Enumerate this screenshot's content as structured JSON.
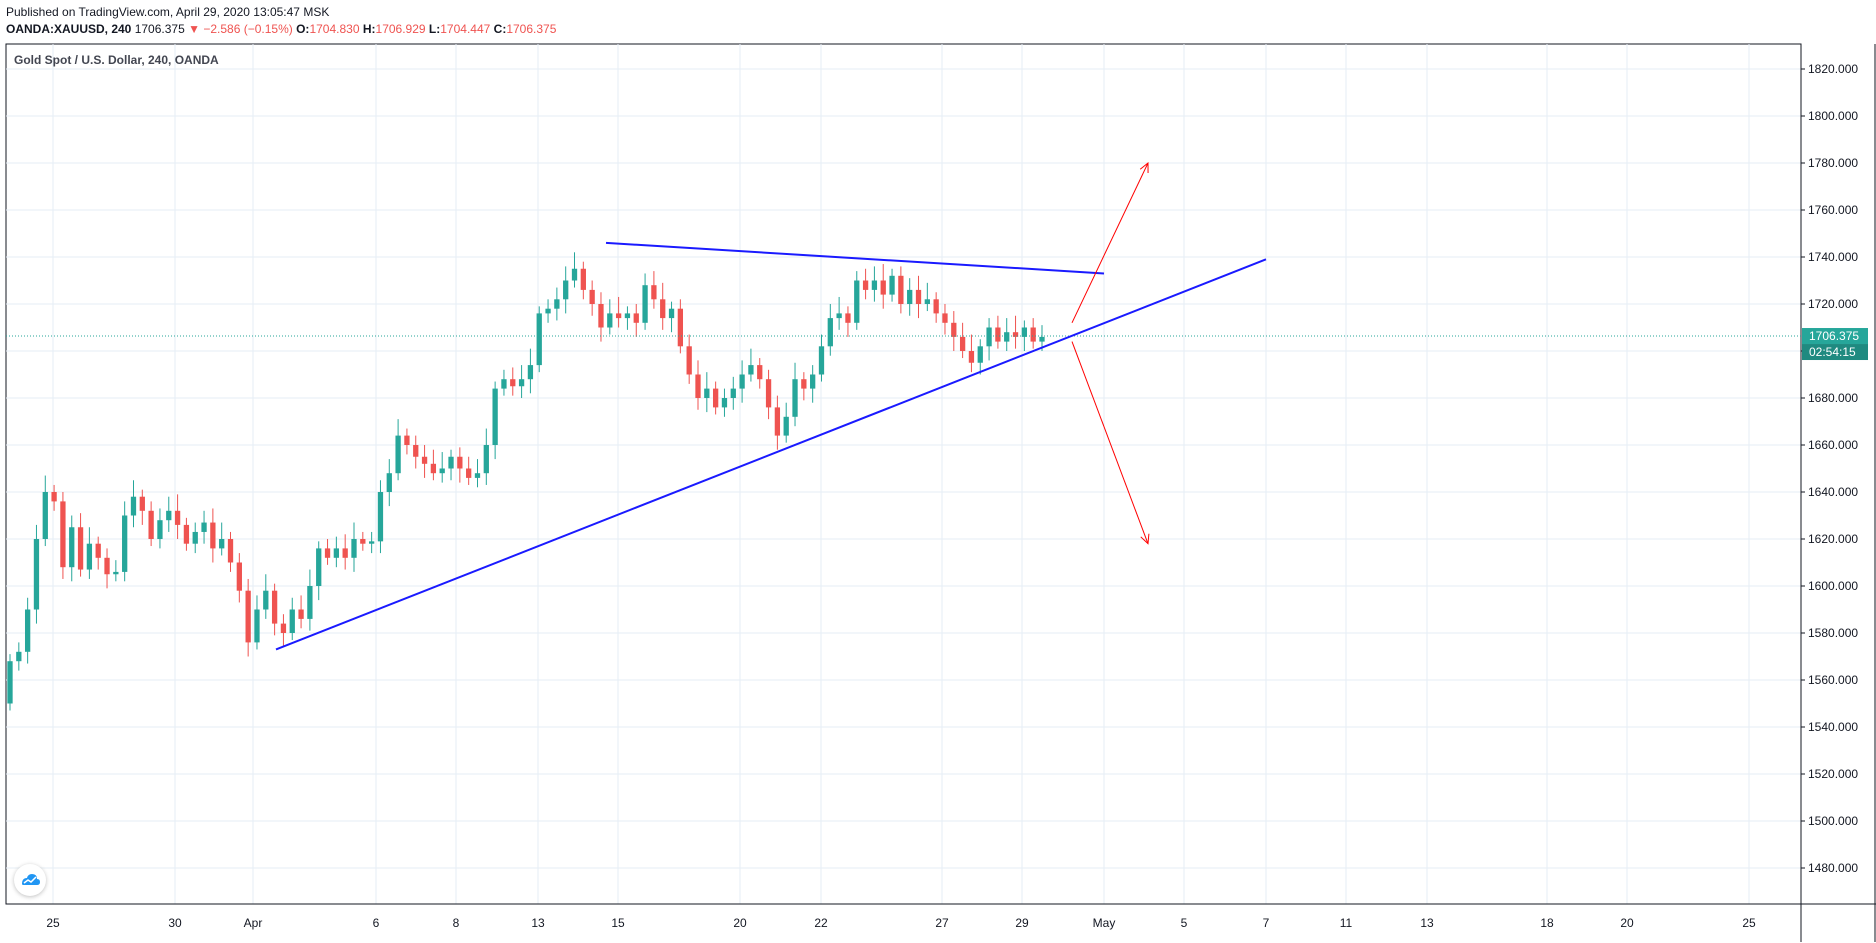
{
  "header": {
    "published": "Published on TradingView.com, April 29, 2020 13:05:47 MSK",
    "symbol": "OANDA:XAUUSD, 240",
    "last": "1706.375",
    "change": "−2.586 (−0.15%)",
    "o_label": "O:",
    "o_value": "1704.830",
    "h_label": "H:",
    "h_value": "1706.929",
    "l_label": "L:",
    "l_value": "1704.447",
    "c_label": "C:",
    "c_value": "1706.375"
  },
  "colors": {
    "up": "#26a69a",
    "down": "#ef5350",
    "trendline": "#1a1aff",
    "arrow": "#ff0000",
    "grid": "#e6eef5",
    "price_tag": "#26a69a"
  },
  "chart_data": {
    "type": "candlestick",
    "title": "Gold Spot / U.S. Dollar, 240, OANDA",
    "ylim": [
      1470,
      1830
    ],
    "y_ticks": [
      "1820.000",
      "1800.000",
      "1780.000",
      "1760.000",
      "1740.000",
      "1720.000",
      "1700.000",
      "1680.000",
      "1660.000",
      "1640.000",
      "1620.000",
      "1600.000",
      "1580.000",
      "1560.000",
      "1540.000",
      "1520.000",
      "1500.000",
      "1480.000"
    ],
    "x_ticks": [
      "25",
      "30",
      "Apr",
      "6",
      "8",
      "13",
      "15",
      "20",
      "22",
      "27",
      "29",
      "May",
      "5",
      "7",
      "11",
      "13",
      "18",
      "20",
      "25"
    ],
    "last_price": "1706.375",
    "countdown": "02:54:15",
    "candles": [
      {
        "o": 1550,
        "c": 1568
      },
      {
        "o": 1568,
        "c": 1572
      },
      {
        "o": 1572,
        "c": 1590
      },
      {
        "o": 1590,
        "c": 1620
      },
      {
        "o": 1620,
        "c": 1640
      },
      {
        "o": 1640,
        "c": 1636
      },
      {
        "o": 1636,
        "c": 1608
      },
      {
        "o": 1608,
        "c": 1625
      },
      {
        "o": 1625,
        "c": 1607
      },
      {
        "o": 1607,
        "c": 1618
      },
      {
        "o": 1618,
        "c": 1612
      },
      {
        "o": 1612,
        "c": 1605
      },
      {
        "o": 1605,
        "c": 1606
      },
      {
        "o": 1606,
        "c": 1630
      },
      {
        "o": 1630,
        "c": 1638
      },
      {
        "o": 1638,
        "c": 1632
      },
      {
        "o": 1632,
        "c": 1620
      },
      {
        "o": 1620,
        "c": 1628
      },
      {
        "o": 1628,
        "c": 1632
      },
      {
        "o": 1632,
        "c": 1626
      },
      {
        "o": 1626,
        "c": 1618
      },
      {
        "o": 1618,
        "c": 1623
      },
      {
        "o": 1623,
        "c": 1627
      },
      {
        "o": 1627,
        "c": 1616
      },
      {
        "o": 1616,
        "c": 1620
      },
      {
        "o": 1620,
        "c": 1610
      },
      {
        "o": 1610,
        "c": 1598
      },
      {
        "o": 1598,
        "c": 1576
      },
      {
        "o": 1576,
        "c": 1590
      },
      {
        "o": 1590,
        "c": 1598
      },
      {
        "o": 1598,
        "c": 1584
      },
      {
        "o": 1584,
        "c": 1580
      },
      {
        "o": 1580,
        "c": 1590
      },
      {
        "o": 1590,
        "c": 1586
      },
      {
        "o": 1586,
        "c": 1600
      },
      {
        "o": 1600,
        "c": 1616
      },
      {
        "o": 1616,
        "c": 1612
      },
      {
        "o": 1612,
        "c": 1616
      },
      {
        "o": 1616,
        "c": 1612
      },
      {
        "o": 1612,
        "c": 1620
      },
      {
        "o": 1620,
        "c": 1618
      },
      {
        "o": 1618,
        "c": 1619
      },
      {
        "o": 1619,
        "c": 1640
      },
      {
        "o": 1640,
        "c": 1648
      },
      {
        "o": 1648,
        "c": 1664
      },
      {
        "o": 1664,
        "c": 1660
      },
      {
        "o": 1660,
        "c": 1655
      },
      {
        "o": 1655,
        "c": 1652
      },
      {
        "o": 1652,
        "c": 1648
      },
      {
        "o": 1648,
        "c": 1650
      },
      {
        "o": 1650,
        "c": 1655
      },
      {
        "o": 1655,
        "c": 1650
      },
      {
        "o": 1650,
        "c": 1646
      },
      {
        "o": 1646,
        "c": 1648
      },
      {
        "o": 1648,
        "c": 1660
      },
      {
        "o": 1660,
        "c": 1684
      },
      {
        "o": 1684,
        "c": 1688
      },
      {
        "o": 1688,
        "c": 1685
      },
      {
        "o": 1685,
        "c": 1688
      },
      {
        "o": 1688,
        "c": 1694
      },
      {
        "o": 1694,
        "c": 1716
      },
      {
        "o": 1716,
        "c": 1718
      },
      {
        "o": 1718,
        "c": 1722
      },
      {
        "o": 1722,
        "c": 1730
      },
      {
        "o": 1730,
        "c": 1735
      },
      {
        "o": 1735,
        "c": 1726
      },
      {
        "o": 1726,
        "c": 1720
      },
      {
        "o": 1720,
        "c": 1710
      },
      {
        "o": 1710,
        "c": 1716
      },
      {
        "o": 1716,
        "c": 1714
      },
      {
        "o": 1714,
        "c": 1716
      },
      {
        "o": 1716,
        "c": 1712
      },
      {
        "o": 1712,
        "c": 1728
      },
      {
        "o": 1728,
        "c": 1722
      },
      {
        "o": 1722,
        "c": 1714
      },
      {
        "o": 1714,
        "c": 1718
      },
      {
        "o": 1718,
        "c": 1702
      },
      {
        "o": 1702,
        "c": 1690
      },
      {
        "o": 1690,
        "c": 1680
      },
      {
        "o": 1680,
        "c": 1684
      },
      {
        "o": 1684,
        "c": 1676
      },
      {
        "o": 1676,
        "c": 1680
      },
      {
        "o": 1680,
        "c": 1684
      },
      {
        "o": 1684,
        "c": 1690
      },
      {
        "o": 1690,
        "c": 1694
      },
      {
        "o": 1694,
        "c": 1688
      },
      {
        "o": 1688,
        "c": 1676
      },
      {
        "o": 1676,
        "c": 1664
      },
      {
        "o": 1664,
        "c": 1672
      },
      {
        "o": 1672,
        "c": 1688
      },
      {
        "o": 1688,
        "c": 1684
      },
      {
        "o": 1684,
        "c": 1690
      },
      {
        "o": 1690,
        "c": 1702
      },
      {
        "o": 1702,
        "c": 1714
      },
      {
        "o": 1714,
        "c": 1716
      },
      {
        "o": 1716,
        "c": 1712
      },
      {
        "o": 1712,
        "c": 1730
      },
      {
        "o": 1730,
        "c": 1726
      },
      {
        "o": 1726,
        "c": 1730
      },
      {
        "o": 1730,
        "c": 1724
      },
      {
        "o": 1724,
        "c": 1732
      },
      {
        "o": 1732,
        "c": 1720
      },
      {
        "o": 1720,
        "c": 1726
      },
      {
        "o": 1726,
        "c": 1720
      },
      {
        "o": 1720,
        "c": 1722
      },
      {
        "o": 1722,
        "c": 1716
      },
      {
        "o": 1716,
        "c": 1712
      },
      {
        "o": 1712,
        "c": 1706
      },
      {
        "o": 1706,
        "c": 1700
      },
      {
        "o": 1700,
        "c": 1695
      },
      {
        "o": 1695,
        "c": 1702
      },
      {
        "o": 1702,
        "c": 1710
      },
      {
        "o": 1710,
        "c": 1704
      },
      {
        "o": 1704,
        "c": 1708
      },
      {
        "o": 1708,
        "c": 1706
      },
      {
        "o": 1706,
        "c": 1710
      },
      {
        "o": 1710,
        "c": 1704
      },
      {
        "o": 1704,
        "c": 1706
      }
    ],
    "drawings": {
      "support_line": {
        "from": [
          "Apr 2",
          1573
        ],
        "to": [
          "May 7",
          1739
        ]
      },
      "resistance_line": {
        "from": [
          "Apr 14",
          1746
        ],
        "to": [
          "May 1",
          1733
        ]
      },
      "arrow_up": {
        "from": [
          "Apr 30",
          1712
        ],
        "to": [
          "May 3",
          1780
        ]
      },
      "arrow_down": {
        "from": [
          "Apr 30",
          1704
        ],
        "to": [
          "May 3",
          1618
        ]
      }
    }
  }
}
